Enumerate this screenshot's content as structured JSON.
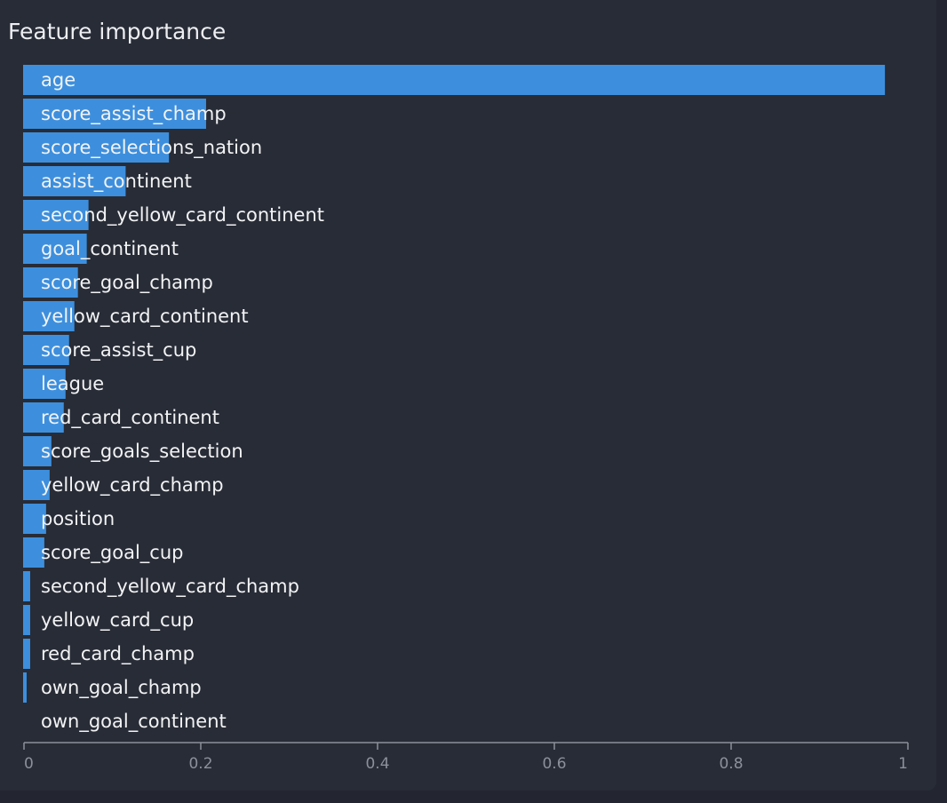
{
  "panel": {
    "title": "Feature importance"
  },
  "chart_data": {
    "type": "bar",
    "orientation": "horizontal",
    "title": "Feature importance",
    "xlim": [
      0,
      1
    ],
    "x_ticks": [
      0,
      0.2,
      0.4,
      0.6,
      0.8,
      1
    ],
    "x_tick_labels": [
      "0",
      "0.2",
      "0.4",
      "0.6",
      "0.8",
      "1"
    ],
    "grid": false,
    "bar_color": "#3d8fdd",
    "categories": [
      "age",
      "score_assist_champ",
      "score_selections_nation",
      "assist_continent",
      "second_yellow_card_continent",
      "goal_continent",
      "score_goal_champ",
      "yellow_card_continent",
      "score_assist_cup",
      "league",
      "red_card_continent",
      "score_goals_selection",
      "yellow_card_champ",
      "position",
      "score_goal_cup",
      "second_yellow_card_champ",
      "yellow_card_cup",
      "red_card_champ",
      "own_goal_champ",
      "own_goal_continent"
    ],
    "values": [
      0.975,
      0.207,
      0.165,
      0.116,
      0.074,
      0.072,
      0.062,
      0.058,
      0.052,
      0.048,
      0.046,
      0.032,
      0.03,
      0.026,
      0.024,
      0.008,
      0.008,
      0.008,
      0.004,
      0.0
    ]
  }
}
